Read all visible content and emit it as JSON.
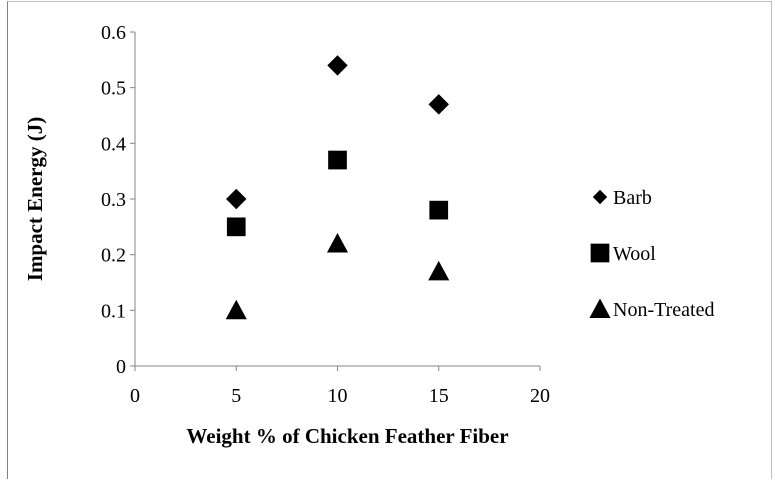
{
  "chart_data": {
    "type": "scatter",
    "xlabel": "Weight % of Chicken Feather Fiber",
    "ylabel": "Impact Energy (J)",
    "xlim": [
      0,
      20
    ],
    "ylim": [
      0,
      0.6
    ],
    "xticks": [
      "0",
      "5",
      "10",
      "15",
      "20"
    ],
    "yticks": [
      "0",
      "0.1",
      "0.2",
      "0.3",
      "0.4",
      "0.5",
      "0.6"
    ],
    "grid": false,
    "legend_position": "right",
    "series": [
      {
        "name": "Barb",
        "marker": "diamond",
        "color": "#000000",
        "points": [
          {
            "x": 5,
            "y": 0.3
          },
          {
            "x": 10,
            "y": 0.54
          },
          {
            "x": 15,
            "y": 0.47
          }
        ]
      },
      {
        "name": "Wool",
        "marker": "square",
        "color": "#000000",
        "points": [
          {
            "x": 5,
            "y": 0.25
          },
          {
            "x": 10,
            "y": 0.37
          },
          {
            "x": 15,
            "y": 0.28
          }
        ]
      },
      {
        "name": "Non-Treated",
        "marker": "triangle",
        "color": "#000000",
        "points": [
          {
            "x": 5,
            "y": 0.1
          },
          {
            "x": 10,
            "y": 0.22
          },
          {
            "x": 15,
            "y": 0.17
          }
        ]
      }
    ]
  }
}
